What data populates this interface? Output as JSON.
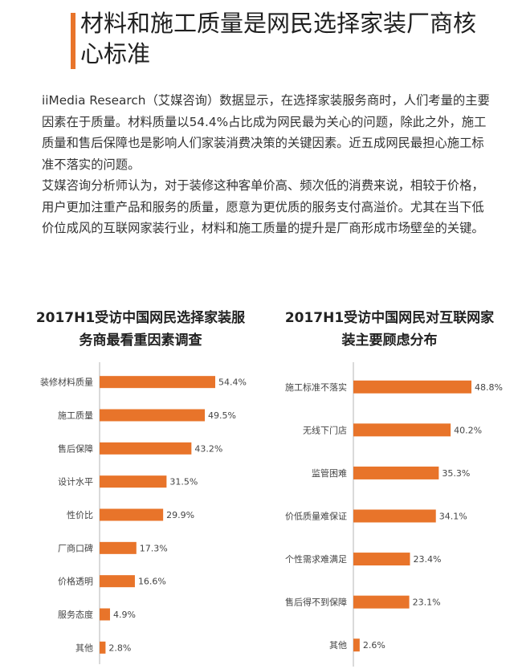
{
  "header": {
    "title": "材料和施工质量是网民选择家装厂商核心标准",
    "accent_color": "#e8742a"
  },
  "intro": {
    "paragraphs": [
      "iiMedia Research（艾媒咨询）数据显示，在选择家装服务商时，人们考量的主要因素在于质量。材料质量以54.4%占比成为网民最为关心的问题，除此之外，施工质量和售后保障也是影响人们家装消费决策的关键因素。近五成网民最担心施工标准不落实的问题。",
      "艾媒咨询分析师认为，对于装修这种客单价高、频次低的消费来说，相较于价格，用户更加注重产品和服务的质量，愿意为更优质的服务支付高溢价。尤其在当下低价位成风的互联网家装行业，材料和施工质量的提升是厂商形成市场壁垒的关键。"
    ]
  },
  "chart_data": [
    {
      "type": "bar",
      "orientation": "horizontal",
      "title": "2017H1受访中国网民选择家装服务商最看重因素调查",
      "categories": [
        "装修材料质量",
        "施工质量",
        "售后保障",
        "设计水平",
        "性价比",
        "厂商口碑",
        "价格透明",
        "服务态度",
        "其他"
      ],
      "values": [
        54.4,
        49.5,
        43.2,
        31.5,
        29.9,
        17.3,
        16.6,
        4.9,
        2.8
      ],
      "value_labels": [
        "54.4%",
        "49.5%",
        "43.2%",
        "31.5%",
        "29.9%",
        "17.3%",
        "16.6%",
        "4.9%",
        "2.8%"
      ],
      "bar_color": "#e8742a",
      "xlim": [
        0,
        60
      ],
      "grid": false
    },
    {
      "type": "bar",
      "orientation": "horizontal",
      "title": "2017H1受访中国网民对互联网家装主要顾虑分布",
      "categories": [
        "施工标准不落实",
        "无线下门店",
        "监管困难",
        "价低质量难保证",
        "个性需求难满足",
        "售后得不到保障",
        "其他"
      ],
      "values": [
        48.8,
        40.2,
        35.3,
        34.1,
        23.4,
        23.1,
        2.6
      ],
      "value_labels": [
        "48.8%",
        "40.2%",
        "35.3%",
        "34.1%",
        "23.4%",
        "23.1%",
        "2.6%"
      ],
      "bar_color": "#e8742a",
      "xlim": [
        0,
        55
      ],
      "grid": false
    }
  ]
}
